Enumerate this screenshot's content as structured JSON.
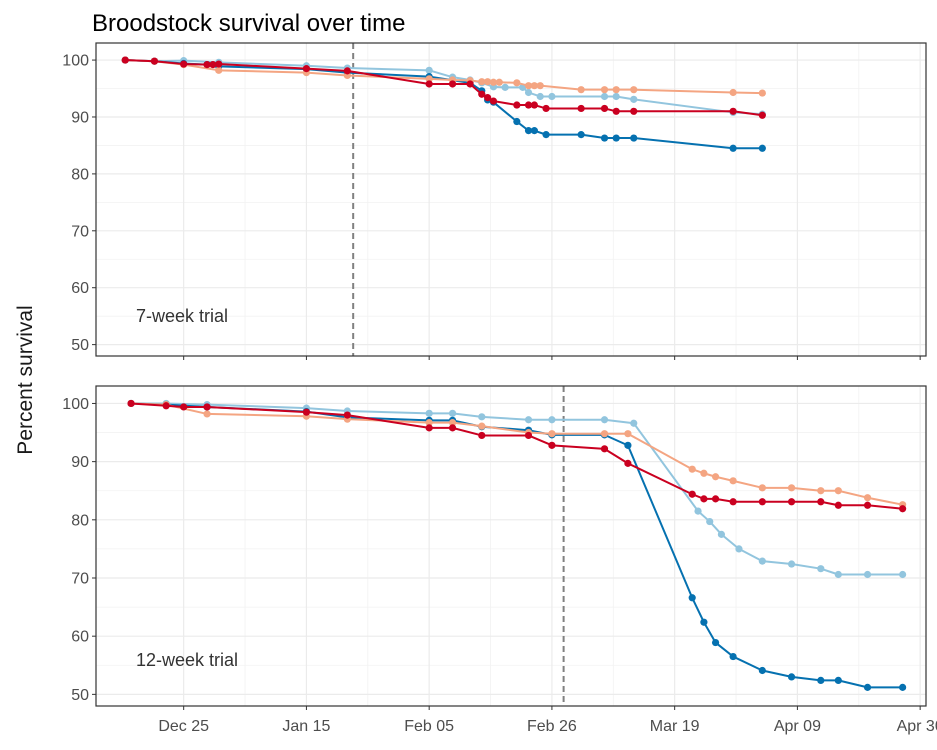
{
  "chart_data": {
    "type": "line",
    "title": "Broodstock survival over time",
    "ylabel": "Percent survival",
    "xlabel": "",
    "x_ticks": [
      {
        "label": "Dec 25",
        "date": "2024-12-25"
      },
      {
        "label": "Jan 15",
        "date": "2025-01-15"
      },
      {
        "label": "Feb 05",
        "date": "2025-02-05"
      },
      {
        "label": "Feb 26",
        "date": "2025-02-26"
      },
      {
        "label": "Mar 19",
        "date": "2025-03-19"
      },
      {
        "label": "Apr 09",
        "date": "2025-04-09"
      },
      {
        "label": "Apr 30",
        "date": "2025-04-30"
      }
    ],
    "xlim": [
      "2024-12-10",
      "2025-05-01"
    ],
    "ylim": [
      48,
      103
    ],
    "y_ticks": [
      50,
      60,
      70,
      80,
      90,
      100
    ],
    "grid": true,
    "legend": "none",
    "colors": {
      "dark_blue": "#0571b0",
      "light_blue": "#92c5de",
      "salmon": "#f4a582",
      "red": "#ca0020",
      "reference_line": "#808080"
    },
    "panels": [
      {
        "label": "7-week trial",
        "reference_date": "2025-01-23",
        "series": [
          {
            "color": "#92c5de",
            "points": [
              [
                "2024-12-15",
                100
              ],
              [
                "2024-12-20",
                99.8
              ],
              [
                "2024-12-25",
                99.9
              ],
              [
                "2024-12-31",
                99.6
              ],
              [
                "2025-01-15",
                99.0
              ],
              [
                "2025-01-22",
                98.6
              ],
              [
                "2025-02-05",
                98.2
              ],
              [
                "2025-02-09",
                97.0
              ],
              [
                "2025-02-12",
                96.5
              ],
              [
                "2025-02-14",
                96.0
              ],
              [
                "2025-02-16",
                95.3
              ],
              [
                "2025-02-18",
                95.2
              ],
              [
                "2025-02-21",
                95.2
              ],
              [
                "2025-02-22",
                94.3
              ],
              [
                "2025-02-24",
                93.6
              ],
              [
                "2025-02-26",
                93.6
              ],
              [
                "2025-03-07",
                93.6
              ],
              [
                "2025-03-09",
                93.6
              ],
              [
                "2025-03-12",
                93.1
              ],
              [
                "2025-03-29",
                90.8
              ],
              [
                "2025-04-03",
                90.5
              ]
            ]
          },
          {
            "color": "#0571b0",
            "points": [
              [
                "2024-12-15",
                100
              ],
              [
                "2024-12-20",
                99.8
              ],
              [
                "2024-12-25",
                99.4
              ],
              [
                "2024-12-29",
                99.2
              ],
              [
                "2024-12-31",
                98.9
              ],
              [
                "2025-01-15",
                98.4
              ],
              [
                "2025-01-22",
                97.8
              ],
              [
                "2025-02-05",
                97.1
              ],
              [
                "2025-02-12",
                96.0
              ],
              [
                "2025-02-14",
                94.6
              ],
              [
                "2025-02-15",
                93.0
              ],
              [
                "2025-02-16",
                92.6
              ],
              [
                "2025-02-20",
                89.2
              ],
              [
                "2025-02-22",
                87.6
              ],
              [
                "2025-02-23",
                87.6
              ],
              [
                "2025-02-25",
                86.9
              ],
              [
                "2025-03-03",
                86.9
              ],
              [
                "2025-03-07",
                86.3
              ],
              [
                "2025-03-09",
                86.3
              ],
              [
                "2025-03-12",
                86.3
              ],
              [
                "2025-03-29",
                84.5
              ],
              [
                "2025-04-03",
                84.5
              ]
            ]
          },
          {
            "color": "#f4a582",
            "points": [
              [
                "2024-12-15",
                100
              ],
              [
                "2024-12-20",
                99.8
              ],
              [
                "2024-12-25",
                99.2
              ],
              [
                "2024-12-31",
                98.2
              ],
              [
                "2025-01-15",
                97.8
              ],
              [
                "2025-01-22",
                97.3
              ],
              [
                "2025-02-05",
                96.7
              ],
              [
                "2025-02-09",
                96.5
              ],
              [
                "2025-02-12",
                96.4
              ],
              [
                "2025-02-14",
                96.2
              ],
              [
                "2025-02-15",
                96.2
              ],
              [
                "2025-02-16",
                96.1
              ],
              [
                "2025-02-17",
                96.1
              ],
              [
                "2025-02-20",
                96.0
              ],
              [
                "2025-02-22",
                95.5
              ],
              [
                "2025-02-23",
                95.5
              ],
              [
                "2025-02-24",
                95.5
              ],
              [
                "2025-03-03",
                94.8
              ],
              [
                "2025-03-07",
                94.8
              ],
              [
                "2025-03-09",
                94.8
              ],
              [
                "2025-03-12",
                94.8
              ],
              [
                "2025-03-29",
                94.3
              ],
              [
                "2025-04-03",
                94.2
              ]
            ]
          },
          {
            "color": "#ca0020",
            "points": [
              [
                "2024-12-15",
                100
              ],
              [
                "2024-12-20",
                99.8
              ],
              [
                "2024-12-25",
                99.3
              ],
              [
                "2024-12-29",
                99.2
              ],
              [
                "2024-12-30",
                99.2
              ],
              [
                "2024-12-31",
                99.3
              ],
              [
                "2025-01-15",
                98.5
              ],
              [
                "2025-01-22",
                98.1
              ],
              [
                "2025-02-05",
                95.8
              ],
              [
                "2025-02-09",
                95.8
              ],
              [
                "2025-02-12",
                95.8
              ],
              [
                "2025-02-14",
                94.0
              ],
              [
                "2025-02-15",
                93.4
              ],
              [
                "2025-02-16",
                92.8
              ],
              [
                "2025-02-20",
                92.1
              ],
              [
                "2025-02-22",
                92.1
              ],
              [
                "2025-02-23",
                92.1
              ],
              [
                "2025-02-25",
                91.5
              ],
              [
                "2025-03-03",
                91.5
              ],
              [
                "2025-03-07",
                91.5
              ],
              [
                "2025-03-09",
                91.0
              ],
              [
                "2025-03-12",
                91.0
              ],
              [
                "2025-03-29",
                91.0
              ],
              [
                "2025-04-03",
                90.3
              ]
            ]
          }
        ]
      },
      {
        "label": "12-week trial",
        "reference_date": "2025-02-28",
        "series": [
          {
            "color": "#92c5de",
            "points": [
              [
                "2024-12-16",
                100
              ],
              [
                "2024-12-22",
                100
              ],
              [
                "2024-12-29",
                99.8
              ],
              [
                "2025-01-15",
                99.2
              ],
              [
                "2025-01-22",
                98.7
              ],
              [
                "2025-02-05",
                98.3
              ],
              [
                "2025-02-09",
                98.3
              ],
              [
                "2025-02-14",
                97.7
              ],
              [
                "2025-02-22",
                97.2
              ],
              [
                "2025-02-26",
                97.2
              ],
              [
                "2025-03-07",
                97.2
              ],
              [
                "2025-03-12",
                96.6
              ],
              [
                "2025-03-23",
                81.5
              ],
              [
                "2025-03-25",
                79.7
              ],
              [
                "2025-03-27",
                77.5
              ],
              [
                "2025-03-30",
                75.0
              ],
              [
                "2025-04-03",
                72.9
              ],
              [
                "2025-04-08",
                72.4
              ],
              [
                "2025-04-13",
                71.6
              ],
              [
                "2025-04-16",
                70.6
              ],
              [
                "2025-04-21",
                70.6
              ],
              [
                "2025-04-27",
                70.6
              ]
            ]
          },
          {
            "color": "#0571b0",
            "points": [
              [
                "2024-12-16",
                100
              ],
              [
                "2024-12-22",
                99.8
              ],
              [
                "2024-12-29",
                99.4
              ],
              [
                "2025-01-15",
                98.6
              ],
              [
                "2025-01-22",
                97.6
              ],
              [
                "2025-02-05",
                97.1
              ],
              [
                "2025-02-09",
                97.1
              ],
              [
                "2025-02-14",
                96.0
              ],
              [
                "2025-02-22",
                95.4
              ],
              [
                "2025-02-26",
                94.6
              ],
              [
                "2025-03-07",
                94.6
              ],
              [
                "2025-03-11",
                92.8
              ],
              [
                "2025-03-22",
                66.6
              ],
              [
                "2025-03-24",
                62.4
              ],
              [
                "2025-03-26",
                58.9
              ],
              [
                "2025-03-29",
                56.5
              ],
              [
                "2025-04-03",
                54.1
              ],
              [
                "2025-04-08",
                53.0
              ],
              [
                "2025-04-13",
                52.4
              ],
              [
                "2025-04-16",
                52.4
              ],
              [
                "2025-04-21",
                51.2
              ],
              [
                "2025-04-27",
                51.2
              ]
            ]
          },
          {
            "color": "#f4a582",
            "points": [
              [
                "2024-12-16",
                100
              ],
              [
                "2024-12-22",
                99.8
              ],
              [
                "2024-12-29",
                98.2
              ],
              [
                "2025-01-15",
                97.8
              ],
              [
                "2025-01-22",
                97.3
              ],
              [
                "2025-02-05",
                96.7
              ],
              [
                "2025-02-09",
                96.7
              ],
              [
                "2025-02-14",
                96.1
              ],
              [
                "2025-02-22",
                95.0
              ],
              [
                "2025-02-26",
                94.8
              ],
              [
                "2025-03-07",
                94.8
              ],
              [
                "2025-03-11",
                94.8
              ],
              [
                "2025-03-22",
                88.7
              ],
              [
                "2025-03-24",
                88.0
              ],
              [
                "2025-03-26",
                87.4
              ],
              [
                "2025-03-29",
                86.7
              ],
              [
                "2025-04-03",
                85.5
              ],
              [
                "2025-04-08",
                85.5
              ],
              [
                "2025-04-13",
                85.0
              ],
              [
                "2025-04-16",
                85.0
              ],
              [
                "2025-04-21",
                83.8
              ],
              [
                "2025-04-27",
                82.6
              ]
            ]
          },
          {
            "color": "#ca0020",
            "points": [
              [
                "2024-12-16",
                100
              ],
              [
                "2024-12-22",
                99.6
              ],
              [
                "2024-12-25",
                99.4
              ],
              [
                "2024-12-29",
                99.4
              ],
              [
                "2025-01-15",
                98.5
              ],
              [
                "2025-01-22",
                98.0
              ],
              [
                "2025-02-05",
                95.8
              ],
              [
                "2025-02-09",
                95.8
              ],
              [
                "2025-02-14",
                94.5
              ],
              [
                "2025-02-22",
                94.5
              ],
              [
                "2025-02-26",
                92.8
              ],
              [
                "2025-03-07",
                92.2
              ],
              [
                "2025-03-11",
                89.7
              ],
              [
                "2025-03-22",
                84.4
              ],
              [
                "2025-03-24",
                83.6
              ],
              [
                "2025-03-26",
                83.6
              ],
              [
                "2025-03-29",
                83.1
              ],
              [
                "2025-04-03",
                83.1
              ],
              [
                "2025-04-08",
                83.1
              ],
              [
                "2025-04-13",
                83.1
              ],
              [
                "2025-04-16",
                82.5
              ],
              [
                "2025-04-21",
                82.5
              ],
              [
                "2025-04-27",
                81.9
              ]
            ]
          }
        ]
      }
    ]
  }
}
